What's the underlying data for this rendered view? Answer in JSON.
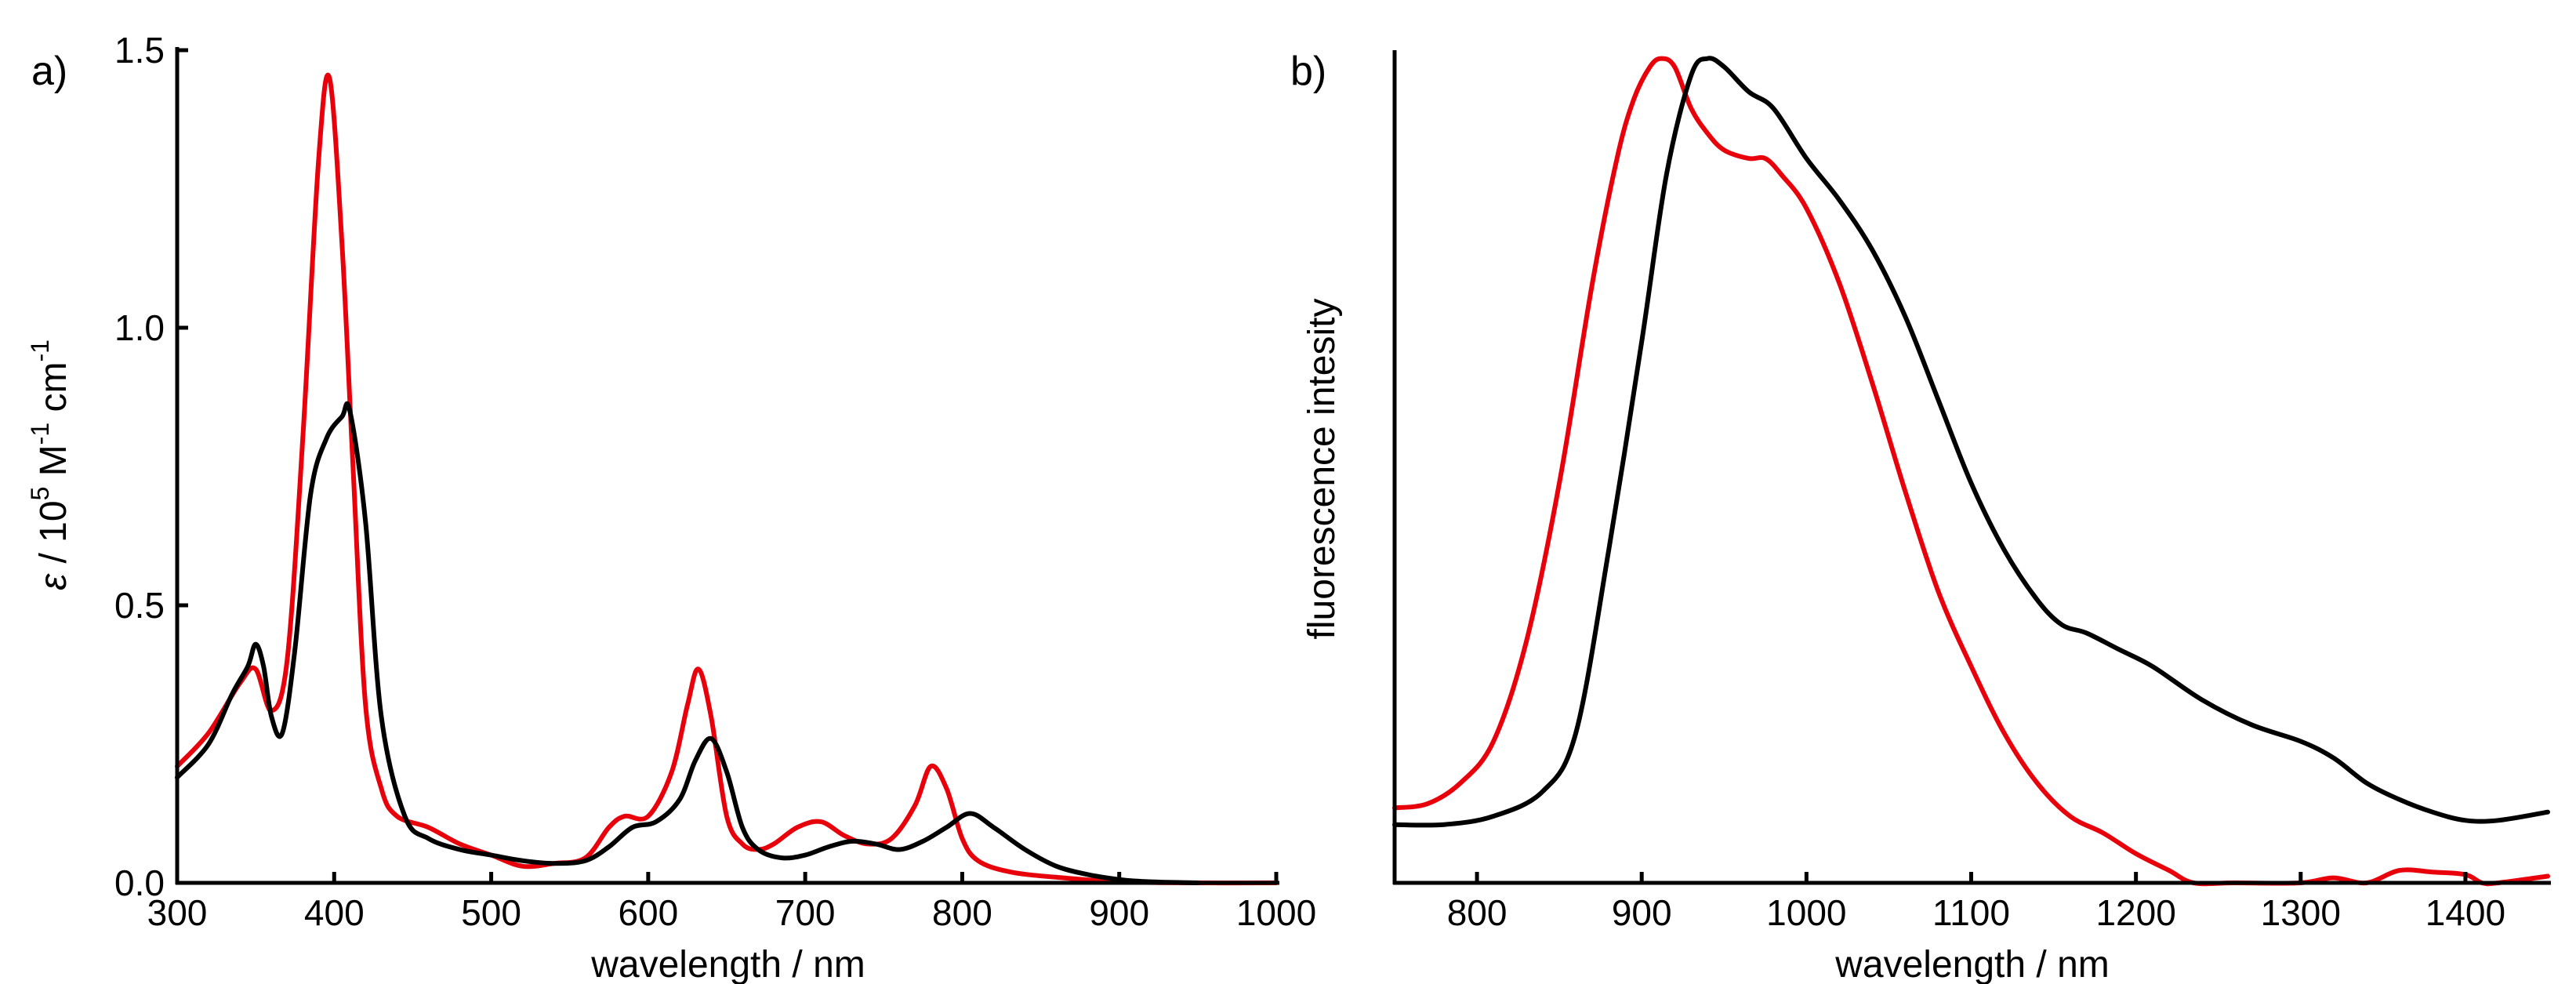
{
  "chart_data": [
    {
      "type": "line",
      "panel_label": "a)",
      "xlabel": "wavelength / nm",
      "ylabel": {
        "symbol": "ε",
        "text1": " / 10",
        "sup1": "5",
        "text2": " M",
        "sup2": "-1",
        "text3": " cm",
        "sup3": "-1"
      },
      "xlim": [
        300,
        1000
      ],
      "ylim": [
        0,
        1.5
      ],
      "x_ticks": [
        300,
        400,
        500,
        600,
        700,
        800,
        900,
        1000
      ],
      "x_tick_labels": [
        "300",
        "400",
        "500",
        "600",
        "700",
        "800",
        "900",
        "1000"
      ],
      "y_ticks": [
        0,
        0.5,
        1.0,
        1.5
      ],
      "y_tick_labels": [
        "0.0",
        "0.5",
        "1.0",
        "1.5"
      ],
      "series": [
        {
          "name": "red",
          "color": "#e8000b",
          "x": [
            300,
            320,
            340,
            350,
            360,
            370,
            380,
            390,
            397,
            405,
            412,
            420,
            430,
            440,
            460,
            480,
            500,
            520,
            540,
            560,
            575,
            585,
            600,
            615,
            625,
            632,
            640,
            650,
            660,
            670,
            680,
            695,
            710,
            725,
            740,
            755,
            770,
            780,
            790,
            800,
            810,
            830,
            860,
            900,
            950,
            1000
          ],
          "y": [
            0.21,
            0.27,
            0.36,
            0.385,
            0.31,
            0.4,
            0.8,
            1.3,
            1.45,
            1.15,
            0.75,
            0.32,
            0.17,
            0.12,
            0.1,
            0.07,
            0.05,
            0.03,
            0.035,
            0.045,
            0.1,
            0.12,
            0.12,
            0.2,
            0.32,
            0.385,
            0.3,
            0.12,
            0.07,
            0.06,
            0.07,
            0.1,
            0.11,
            0.085,
            0.07,
            0.08,
            0.14,
            0.21,
            0.17,
            0.08,
            0.04,
            0.02,
            0.01,
            0.002,
            0.0,
            0.0
          ]
        },
        {
          "name": "black",
          "color": "#000000",
          "x": [
            300,
            320,
            335,
            345,
            350,
            355,
            360,
            367,
            375,
            385,
            395,
            405,
            410,
            420,
            430,
            445,
            460,
            480,
            500,
            520,
            540,
            560,
            575,
            590,
            605,
            620,
            630,
            640,
            650,
            660,
            670,
            685,
            700,
            715,
            730,
            745,
            760,
            775,
            790,
            805,
            820,
            840,
            860,
            880,
            900,
            920,
            950
          ],
          "y": [
            0.19,
            0.25,
            0.34,
            0.39,
            0.43,
            0.39,
            0.3,
            0.27,
            0.42,
            0.7,
            0.8,
            0.84,
            0.85,
            0.65,
            0.3,
            0.12,
            0.08,
            0.06,
            0.05,
            0.04,
            0.035,
            0.04,
            0.065,
            0.1,
            0.11,
            0.15,
            0.22,
            0.26,
            0.2,
            0.1,
            0.06,
            0.045,
            0.05,
            0.065,
            0.075,
            0.07,
            0.06,
            0.075,
            0.1,
            0.125,
            0.1,
            0.06,
            0.03,
            0.015,
            0.006,
            0.002,
            0.0
          ]
        }
      ]
    },
    {
      "type": "line",
      "panel_label": "b)",
      "xlabel": "wavelength / nm",
      "ylabel": "fluorescence intesity",
      "xlim": [
        750,
        1450
      ],
      "ylim": [
        0,
        1.0
      ],
      "x_ticks": [
        800,
        900,
        1000,
        1100,
        1200,
        1300,
        1400
      ],
      "x_tick_labels": [
        "800",
        "900",
        "1000",
        "1100",
        "1200",
        "1300",
        "1400"
      ],
      "y_ticks": [],
      "series": [
        {
          "name": "red",
          "color": "#e8000b",
          "x": [
            750,
            770,
            790,
            810,
            830,
            850,
            870,
            885,
            895,
            905,
            912,
            920,
            930,
            940,
            950,
            965,
            975,
            985,
            1000,
            1020,
            1040,
            1060,
            1080,
            1100,
            1120,
            1140,
            1160,
            1180,
            1200,
            1220,
            1235,
            1260,
            1300,
            1320,
            1340,
            1360,
            1380,
            1400,
            1410,
            1420,
            1450
          ],
          "y": [
            0.09,
            0.095,
            0.12,
            0.17,
            0.29,
            0.48,
            0.72,
            0.87,
            0.94,
            0.98,
            0.99,
            0.98,
            0.93,
            0.9,
            0.88,
            0.87,
            0.87,
            0.85,
            0.81,
            0.72,
            0.6,
            0.47,
            0.35,
            0.26,
            0.18,
            0.12,
            0.08,
            0.06,
            0.035,
            0.015,
            0.0,
            0.0,
            0.0,
            0.006,
            0.0,
            0.015,
            0.013,
            0.01,
            0.0,
            0.0,
            0.008
          ]
        },
        {
          "name": "black",
          "color": "#000000",
          "x": [
            750,
            780,
            810,
            840,
            860,
            880,
            900,
            915,
            930,
            940,
            950,
            965,
            980,
            1000,
            1020,
            1040,
            1060,
            1080,
            1100,
            1120,
            1140,
            1155,
            1170,
            1190,
            1210,
            1240,
            1270,
            1300,
            1320,
            1340,
            1360,
            1380,
            1400,
            1420,
            1450
          ],
          "y": [
            0.07,
            0.07,
            0.08,
            0.11,
            0.18,
            0.4,
            0.65,
            0.85,
            0.97,
            0.99,
            0.98,
            0.95,
            0.93,
            0.87,
            0.82,
            0.76,
            0.68,
            0.58,
            0.48,
            0.4,
            0.34,
            0.31,
            0.3,
            0.28,
            0.26,
            0.22,
            0.19,
            0.17,
            0.15,
            0.12,
            0.1,
            0.085,
            0.075,
            0.075,
            0.085
          ]
        }
      ]
    }
  ]
}
